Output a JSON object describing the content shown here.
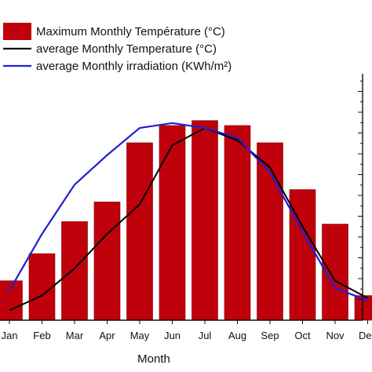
{
  "chart_data": {
    "type": "bar",
    "categories": [
      "Jan",
      "Feb",
      "Mar",
      "Apr",
      "May",
      "Jun",
      "Jul",
      "Aug",
      "Sep",
      "Oct",
      "Nov",
      "Dec"
    ],
    "xlabel": "Month",
    "ylim": [
      0,
      100
    ],
    "series": [
      {
        "name": "Maximum  Monthly  Température  (°C)",
        "kind": "bar",
        "color": "#c0000b",
        "values": [
          16,
          27,
          40,
          48,
          72,
          79,
          81,
          79,
          72,
          53,
          39,
          10
        ]
      },
      {
        "name": "average Monthly  Temperature (°C)",
        "kind": "line",
        "color": "#000000",
        "values": [
          4,
          10,
          21,
          35,
          47,
          71,
          78,
          73,
          62,
          38,
          16,
          9
        ]
      },
      {
        "name": "average Monthly irradiation (KWh/m²)",
        "kind": "line",
        "color": "#1f1fd0",
        "values": [
          12,
          35,
          55,
          67,
          78,
          80,
          78,
          74,
          60,
          36,
          13,
          8
        ]
      }
    ],
    "legend_position": "top-left",
    "grid": false
  }
}
